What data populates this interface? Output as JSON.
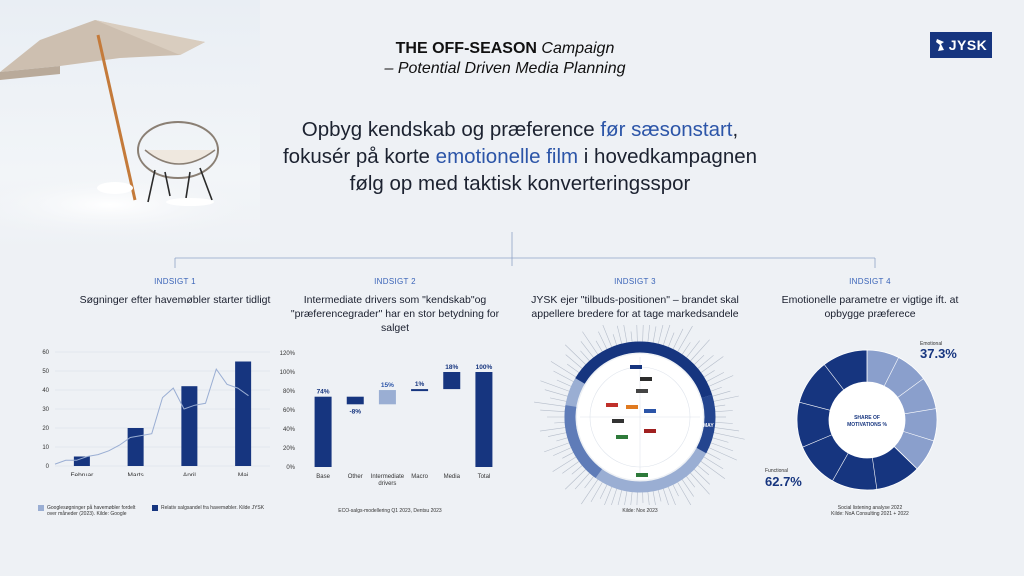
{
  "brand": {
    "logo_text": "JYSK",
    "color": "#16357f"
  },
  "title": {
    "bold": "THE OFF-SEASON",
    "italic": "Campaign",
    "subtitle": "– Potential Driven Media Planning"
  },
  "headline": {
    "l1a": "Opbyg kendskab og præference ",
    "l1b": "før sæsonstart",
    "l1c": ",",
    "l2a": "fokusér på korte ",
    "l2b": "emotionelle film",
    "l2c": " i hovedkampagnen",
    "l3": "følg op med taktisk konverteringsspor"
  },
  "insights": [
    {
      "label": "INDSIGT 1",
      "text": "Søgninger efter havemøbler starter tidligt"
    },
    {
      "label": "INDSIGT 2",
      "text": "Intermediate drivers som \"kendskab\"og \"præferencegrader\" har en stor betydning for salget"
    },
    {
      "label": "INDSIGT 3",
      "text": "JYSK ejer \"tilbuds-positionen\" – brandet skal appellere bredere for at tage markedsandele"
    },
    {
      "label": "INDSIGT 4",
      "text": "Emotionelle parametre er vigtige ift. at opbygge præferece"
    }
  ],
  "chart1_legend": {
    "line": "Googlesøgninger på havemøbler fordelt over måneder (2023). Kilde: Google",
    "bar": "Relativ salgsandel fra havemøbler. Kilde JYSK"
  },
  "chart2_source": "ECO-salgs-modellering Q1 2023, Dentsu 2023",
  "chart3_source": "Kilde: Nox 2023",
  "chart4_source": [
    "Social listening analyse 2022",
    "Kilde: NoA Consulting 2021 + 2022"
  ],
  "chart_data": [
    {
      "type": "bar",
      "categories": [
        "Februar",
        "Marts",
        "April",
        "Maj"
      ],
      "series": [
        {
          "name": "Relativ salgsandel fra havemøbler. Kilde JYSK",
          "values": [
            5,
            20,
            42,
            55
          ]
        }
      ],
      "line_series": {
        "name": "Googlesøgninger på havemøbler fordelt over måneder (2023). Kilde: Google",
        "points": [
          [
            0.0,
            1
          ],
          [
            0.2,
            3
          ],
          [
            0.4,
            3
          ],
          [
            0.6,
            5
          ],
          [
            0.8,
            6
          ],
          [
            1.0,
            8
          ],
          [
            1.2,
            11
          ],
          [
            1.4,
            15
          ],
          [
            1.6,
            16
          ],
          [
            1.8,
            17
          ],
          [
            2.0,
            36
          ],
          [
            2.2,
            41
          ],
          [
            2.4,
            30
          ],
          [
            2.6,
            32
          ],
          [
            2.8,
            33
          ],
          [
            3.0,
            51
          ],
          [
            3.2,
            43
          ],
          [
            3.4,
            41
          ],
          [
            3.6,
            37
          ]
        ]
      },
      "yticks": [
        0,
        10,
        20,
        30,
        40,
        50,
        60
      ],
      "ylim": [
        0,
        60
      ]
    },
    {
      "type": "bar",
      "subtype": "waterfall",
      "categories": [
        "Base",
        "Other",
        "Intermediate drivers",
        "Macro",
        "Media",
        "Total"
      ],
      "values": [
        74,
        -8,
        15,
        1,
        18,
        100
      ],
      "labels": [
        "74%",
        "-8%",
        "15%",
        "1%",
        "18%",
        "100%"
      ],
      "yticks": [
        "0%",
        "20%",
        "40%",
        "60%",
        "80%",
        "100%",
        "120%"
      ],
      "ylim": [
        0,
        120
      ]
    },
    {
      "type": "pie",
      "subtype": "perceptual-donut",
      "labels_visible": [
        "MAY"
      ],
      "source": "Kilde: Nox 2023"
    },
    {
      "type": "pie",
      "center_label": "SHARE OF MOTIVATIONS %",
      "series": [
        {
          "name": "Emotional",
          "value": 37.3,
          "label": "37.3%"
        },
        {
          "name": "Functional",
          "value": 62.7,
          "label": "62.7%"
        }
      ]
    }
  ]
}
